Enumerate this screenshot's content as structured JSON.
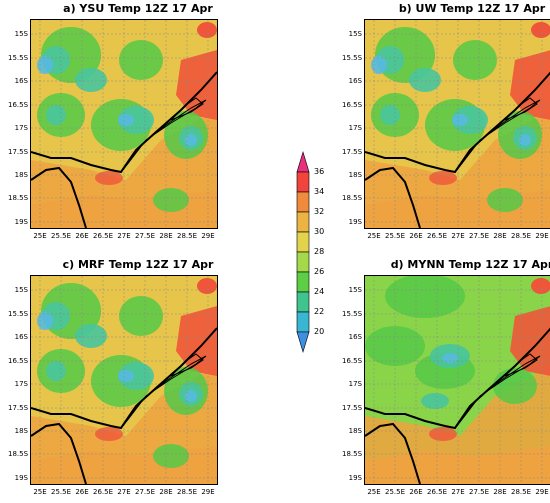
{
  "panels": [
    {
      "id": "a",
      "title": "a) YSU Temp 12Z 17 Apr"
    },
    {
      "id": "b",
      "title": "b) UW Temp 12Z 17 Apr"
    },
    {
      "id": "c",
      "title": "c) MRF Temp 12Z 17 Apr"
    },
    {
      "id": "d",
      "title": "d) MYNN Temp 12Z 17 Apr"
    }
  ],
  "lat_labels": [
    "15S",
    "15.5S",
    "16S",
    "16.5S",
    "17S",
    "17.5S",
    "18S",
    "18.5S",
    "19S"
  ],
  "lon_labels": [
    "25E",
    "25.5E",
    "26E",
    "26.5E",
    "27E",
    "27.5E",
    "28E",
    "28.5E",
    "29E"
  ],
  "colorbar": {
    "labels": [
      "36",
      "34",
      "32",
      "30",
      "28",
      "26",
      "24",
      "22",
      "20"
    ],
    "colors": [
      "#e8307f",
      "#f0443c",
      "#f08a3c",
      "#ecb543",
      "#e3d34c",
      "#a4d94a",
      "#5ccf45",
      "#3fc38f",
      "#39b7d2",
      "#3d8fe0"
    ]
  },
  "map_colors": {
    "hot": "#f0553a",
    "warm": "#eea240",
    "mild": "#e6c54a",
    "cool": "#8ad449",
    "green": "#55c948",
    "teal": "#48c59c",
    "cyan": "#58b9e0",
    "blue": "#4d9fe6"
  }
}
